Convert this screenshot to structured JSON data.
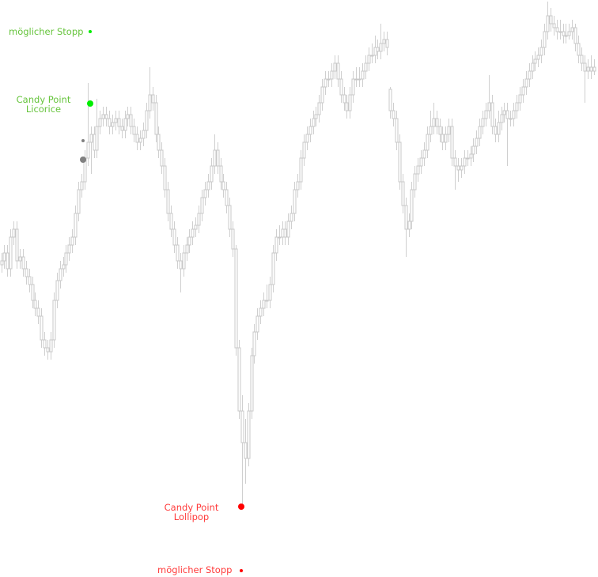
{
  "chart_data": {
    "type": "candlestick",
    "title": "",
    "xlabel": "",
    "ylabel": "",
    "ylim": [
      0,
      730
    ],
    "grid": false,
    "colors": {
      "candle_outline": "#c8c8c8",
      "candle_fill": "#ffffff",
      "wick": "#cfcfcf"
    },
    "candles": [
      [
        395,
        410,
        385,
        400
      ],
      [
        400,
        420,
        390,
        410
      ],
      [
        410,
        420,
        380,
        390
      ],
      [
        390,
        440,
        380,
        430
      ],
      [
        430,
        450,
        420,
        440
      ],
      [
        440,
        450,
        390,
        400
      ],
      [
        400,
        415,
        390,
        405
      ],
      [
        405,
        415,
        380,
        390
      ],
      [
        390,
        400,
        370,
        380
      ],
      [
        380,
        390,
        360,
        370
      ],
      [
        370,
        380,
        340,
        350
      ],
      [
        350,
        360,
        330,
        340
      ],
      [
        340,
        350,
        320,
        330
      ],
      [
        330,
        340,
        290,
        300
      ],
      [
        300,
        310,
        280,
        290
      ],
      [
        290,
        300,
        275,
        285
      ],
      [
        285,
        310,
        275,
        300
      ],
      [
        300,
        360,
        290,
        350
      ],
      [
        350,
        385,
        340,
        375
      ],
      [
        375,
        400,
        365,
        390
      ],
      [
        390,
        405,
        380,
        395
      ],
      [
        395,
        420,
        385,
        410
      ],
      [
        410,
        430,
        400,
        420
      ],
      [
        420,
        440,
        410,
        430
      ],
      [
        430,
        470,
        420,
        460
      ],
      [
        460,
        500,
        450,
        490
      ],
      [
        490,
        510,
        480,
        500
      ],
      [
        500,
        540,
        490,
        530
      ],
      [
        530,
        625,
        520,
        550
      ],
      [
        550,
        570,
        510,
        560
      ],
      [
        560,
        570,
        530,
        540
      ],
      [
        540,
        605,
        530,
        570
      ],
      [
        570,
        590,
        560,
        580
      ],
      [
        580,
        595,
        570,
        585
      ],
      [
        585,
        595,
        570,
        580
      ],
      [
        580,
        590,
        560,
        570
      ],
      [
        570,
        585,
        560,
        575
      ],
      [
        575,
        590,
        565,
        580
      ],
      [
        580,
        590,
        560,
        570
      ],
      [
        570,
        580,
        555,
        565
      ],
      [
        565,
        590,
        555,
        580
      ],
      [
        580,
        595,
        570,
        585
      ],
      [
        585,
        595,
        560,
        570
      ],
      [
        570,
        580,
        550,
        560
      ],
      [
        560,
        570,
        540,
        550
      ],
      [
        550,
        565,
        540,
        555
      ],
      [
        555,
        575,
        545,
        565
      ],
      [
        565,
        600,
        555,
        590
      ],
      [
        590,
        645,
        580,
        610
      ],
      [
        610,
        620,
        590,
        600
      ],
      [
        600,
        610,
        550,
        560
      ],
      [
        560,
        570,
        530,
        540
      ],
      [
        540,
        550,
        510,
        520
      ],
      [
        520,
        530,
        480,
        490
      ],
      [
        490,
        500,
        450,
        460
      ],
      [
        460,
        470,
        430,
        440
      ],
      [
        440,
        450,
        410,
        420
      ],
      [
        420,
        430,
        390,
        400
      ],
      [
        400,
        410,
        360,
        390
      ],
      [
        390,
        420,
        380,
        410
      ],
      [
        410,
        430,
        400,
        420
      ],
      [
        420,
        440,
        410,
        430
      ],
      [
        430,
        450,
        420,
        440
      ],
      [
        440,
        455,
        430,
        445
      ],
      [
        445,
        470,
        435,
        460
      ],
      [
        460,
        490,
        450,
        480
      ],
      [
        480,
        500,
        470,
        490
      ],
      [
        490,
        510,
        480,
        500
      ],
      [
        500,
        530,
        490,
        520
      ],
      [
        520,
        560,
        510,
        540
      ],
      [
        540,
        550,
        510,
        520
      ],
      [
        520,
        530,
        490,
        500
      ],
      [
        500,
        510,
        480,
        490
      ],
      [
        490,
        500,
        460,
        470
      ],
      [
        470,
        480,
        430,
        440
      ],
      [
        440,
        450,
        405,
        415
      ],
      [
        415,
        420,
        280,
        290
      ],
      [
        290,
        300,
        200,
        210
      ],
      [
        210,
        230,
        90,
        170
      ],
      [
        170,
        200,
        118,
        150
      ],
      [
        150,
        220,
        140,
        210
      ],
      [
        210,
        290,
        200,
        280
      ],
      [
        280,
        320,
        270,
        310
      ],
      [
        310,
        340,
        300,
        330
      ],
      [
        330,
        350,
        320,
        340
      ],
      [
        340,
        360,
        330,
        350
      ],
      [
        350,
        370,
        340,
        350
      ],
      [
        350,
        380,
        340,
        370
      ],
      [
        370,
        420,
        360,
        410
      ],
      [
        410,
        440,
        400,
        430
      ],
      [
        430,
        445,
        420,
        430
      ],
      [
        430,
        450,
        420,
        440
      ],
      [
        440,
        450,
        420,
        430
      ],
      [
        430,
        460,
        420,
        450
      ],
      [
        450,
        470,
        440,
        460
      ],
      [
        460,
        500,
        450,
        490
      ],
      [
        490,
        510,
        480,
        500
      ],
      [
        500,
        540,
        490,
        530
      ],
      [
        530,
        560,
        520,
        550
      ],
      [
        550,
        570,
        540,
        560
      ],
      [
        560,
        580,
        550,
        570
      ],
      [
        570,
        590,
        560,
        580
      ],
      [
        580,
        595,
        570,
        585
      ],
      [
        585,
        610,
        575,
        600
      ],
      [
        600,
        630,
        590,
        620
      ],
      [
        620,
        640,
        610,
        630
      ],
      [
        630,
        640,
        620,
        630
      ],
      [
        630,
        650,
        620,
        640
      ],
      [
        640,
        660,
        630,
        650
      ],
      [
        650,
        660,
        620,
        630
      ],
      [
        630,
        640,
        600,
        610
      ],
      [
        610,
        620,
        590,
        600
      ],
      [
        600,
        610,
        580,
        590
      ],
      [
        590,
        620,
        580,
        610
      ],
      [
        610,
        640,
        600,
        630
      ],
      [
        630,
        645,
        620,
        630
      ],
      [
        630,
        645,
        620,
        630
      ],
      [
        630,
        650,
        620,
        640
      ],
      [
        640,
        660,
        630,
        650
      ],
      [
        650,
        670,
        640,
        660
      ],
      [
        660,
        675,
        650,
        660
      ],
      [
        660,
        685,
        650,
        670
      ],
      [
        670,
        680,
        655,
        665
      ],
      [
        665,
        700,
        655,
        675
      ],
      [
        675,
        690,
        665,
        680
      ],
      [
        680,
        690,
        660,
        670
      ],
      [
        617,
        620,
        580,
        590
      ],
      [
        590,
        600,
        570,
        580
      ],
      [
        580,
        590,
        540,
        550
      ],
      [
        550,
        560,
        490,
        500
      ],
      [
        500,
        510,
        460,
        470
      ],
      [
        470,
        480,
        405,
        440
      ],
      [
        440,
        460,
        430,
        450
      ],
      [
        450,
        500,
        440,
        490
      ],
      [
        490,
        520,
        480,
        510
      ],
      [
        510,
        530,
        500,
        520
      ],
      [
        520,
        540,
        510,
        530
      ],
      [
        530,
        550,
        520,
        540
      ],
      [
        540,
        570,
        530,
        560
      ],
      [
        560,
        590,
        550,
        570
      ],
      [
        570,
        600,
        560,
        580
      ],
      [
        580,
        590,
        560,
        570
      ],
      [
        570,
        580,
        550,
        560
      ],
      [
        560,
        570,
        540,
        550
      ],
      [
        550,
        570,
        540,
        560
      ],
      [
        560,
        580,
        550,
        570
      ],
      [
        570,
        580,
        520,
        530
      ],
      [
        530,
        540,
        490,
        520
      ],
      [
        520,
        530,
        500,
        515
      ],
      [
        515,
        530,
        505,
        520
      ],
      [
        520,
        540,
        510,
        530
      ],
      [
        530,
        540,
        520,
        530
      ],
      [
        530,
        545,
        520,
        535
      ],
      [
        535,
        555,
        525,
        545
      ],
      [
        545,
        565,
        535,
        555
      ],
      [
        555,
        580,
        545,
        570
      ],
      [
        570,
        590,
        560,
        580
      ],
      [
        580,
        600,
        570,
        590
      ],
      [
        590,
        635,
        580,
        600
      ],
      [
        600,
        610,
        560,
        570
      ],
      [
        570,
        580,
        550,
        560
      ],
      [
        560,
        590,
        550,
        575
      ],
      [
        575,
        595,
        565,
        585
      ],
      [
        585,
        600,
        575,
        590
      ],
      [
        590,
        600,
        520,
        580
      ],
      [
        580,
        590,
        570,
        580
      ],
      [
        580,
        600,
        570,
        590
      ],
      [
        590,
        610,
        580,
        600
      ],
      [
        600,
        620,
        590,
        610
      ],
      [
        610,
        630,
        600,
        620
      ],
      [
        620,
        640,
        610,
        630
      ],
      [
        630,
        650,
        620,
        640
      ],
      [
        640,
        660,
        630,
        650
      ],
      [
        650,
        665,
        640,
        655
      ],
      [
        655,
        670,
        645,
        660
      ],
      [
        660,
        680,
        650,
        670
      ],
      [
        670,
        700,
        660,
        690
      ],
      [
        690,
        728,
        680,
        710
      ],
      [
        710,
        720,
        690,
        700
      ],
      [
        700,
        710,
        685,
        695
      ],
      [
        695,
        705,
        680,
        690
      ],
      [
        690,
        705,
        680,
        690
      ],
      [
        690,
        700,
        675,
        685
      ],
      [
        685,
        700,
        675,
        685
      ],
      [
        685,
        700,
        680,
        690
      ],
      [
        690,
        705,
        680,
        695
      ],
      [
        695,
        700,
        665,
        675
      ],
      [
        675,
        685,
        650,
        660
      ],
      [
        660,
        670,
        640,
        650
      ],
      [
        650,
        660,
        600,
        640
      ],
      [
        640,
        655,
        630,
        645
      ],
      [
        645,
        660,
        630,
        640
      ],
      [
        640,
        655,
        635,
        645
      ]
    ],
    "annotations": {
      "top_stop": {
        "text": "möglicher Stopp",
        "color": "#66c43c",
        "marker_color": "#00ee00"
      },
      "licorice": {
        "line1": "Candy Point",
        "line2": "Licorice",
        "color": "#66c43c",
        "marker_color": "#00ee00"
      },
      "lollipop": {
        "line1": "Candy Point",
        "line2": "Lollipop",
        "color": "#ff3b3b",
        "marker_color": "#ff0000"
      },
      "bottom_stop": {
        "text": "möglicher Stopp",
        "color": "#ff3b3b",
        "marker_color": "#ff0000"
      },
      "grey_markers_color": "#808080"
    }
  }
}
